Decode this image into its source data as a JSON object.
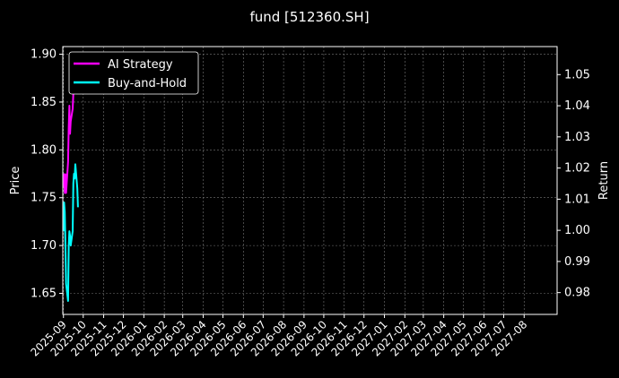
{
  "chart_data": {
    "type": "line",
    "title": "fund [512360.SH]",
    "ylabel_left": "Price",
    "ylabel_right": "Return",
    "y_left_ticks": [
      "1.65",
      "1.70",
      "1.75",
      "1.80",
      "1.85",
      "1.90"
    ],
    "y_left_range": [
      1.628,
      1.908
    ],
    "y_right_ticks": [
      "0.98",
      "0.99",
      "1.00",
      "1.01",
      "1.02",
      "1.03",
      "1.04",
      "1.05"
    ],
    "y_right_range": [
      0.973,
      1.059
    ],
    "x_ticks": [
      "2025-09",
      "2025-10",
      "2025-11",
      "2025-12",
      "2026-01",
      "2026-02",
      "2026-03",
      "2026-04",
      "2026-05",
      "2026-06",
      "2026-07",
      "2026-08",
      "2026-09",
      "2026-10",
      "2026-11",
      "2026-12",
      "2027-01",
      "2027-02",
      "2027-03",
      "2027-04",
      "2027-05",
      "2027-06",
      "2027-07",
      "2027-08"
    ],
    "x_range": [
      "2025-08-31",
      "2027-09-20"
    ],
    "grid": true,
    "legend_position": "top-left",
    "series": [
      {
        "name": "AI Strategy",
        "color": "#ff00ff",
        "axis": "right",
        "x": [
          "2025-09-01",
          "2025-09-02",
          "2025-09-03",
          "2025-09-04",
          "2025-09-05",
          "2025-09-08",
          "2025-09-09",
          "2025-09-10",
          "2025-09-11",
          "2025-09-12",
          "2025-09-15",
          "2025-09-16"
        ],
        "values": [
          1.014,
          1.018,
          1.012,
          1.018,
          1.012,
          1.022,
          1.033,
          1.04,
          1.031,
          1.035,
          1.039,
          1.044
        ]
      },
      {
        "name": "Buy-and-Hold",
        "color": "#00ffff",
        "axis": "left",
        "x": [
          "2025-09-01",
          "2025-09-02",
          "2025-09-03",
          "2025-09-04",
          "2025-09-05",
          "2025-09-08",
          "2025-09-09",
          "2025-09-10",
          "2025-09-11",
          "2025-09-12",
          "2025-09-15",
          "2025-09-16",
          "2025-09-17",
          "2025-09-18",
          "2025-09-19",
          "2025-09-22",
          "2025-09-23"
        ],
        "values": [
          1.715,
          1.745,
          1.735,
          1.7,
          1.66,
          1.642,
          1.7,
          1.715,
          1.71,
          1.7,
          1.715,
          1.765,
          1.775,
          1.77,
          1.785,
          1.76,
          1.74
        ]
      }
    ]
  }
}
